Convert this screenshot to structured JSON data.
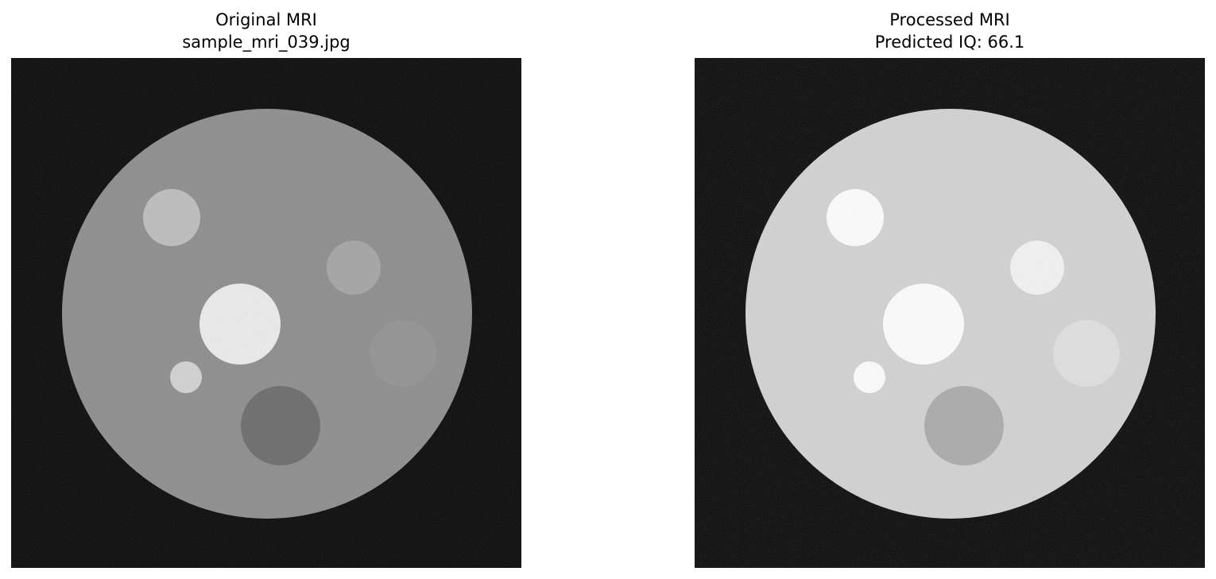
{
  "figure": {
    "panels": [
      {
        "title_line1": "Original MRI",
        "title_line2": "sample_mri_039.jpg",
        "image": {
          "background": "#050505",
          "phantom_color": "#8c8c8c",
          "description_icon": "mri-phantom-image",
          "spots": [
            {
              "color": "#bdbdbd"
            },
            {
              "color": "#a4a4a4"
            },
            {
              "color": "#ececec"
            },
            {
              "color": "#d2d2d2"
            },
            {
              "color": "#919191"
            },
            {
              "color": "#6a6a6a"
            }
          ]
        }
      },
      {
        "title_line1": "Processed MRI",
        "title_line2": "Predicted IQ: 66.1",
        "image": {
          "background": "#050505",
          "phantom_color": "#d3d3d3",
          "description_icon": "mri-phantom-image",
          "spots": [
            {
              "color": "#ffffff"
            },
            {
              "color": "#f4f4f4"
            },
            {
              "color": "#ffffff"
            },
            {
              "color": "#ffffff"
            },
            {
              "color": "#e0e0e0"
            },
            {
              "color": "#aaaaaa"
            }
          ]
        }
      }
    ]
  }
}
